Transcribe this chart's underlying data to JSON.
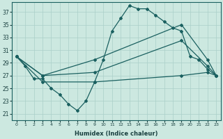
{
  "xlabel": "Humidex (Indice chaleur)",
  "bg_color": "#cce8e0",
  "grid_color": "#aacfc8",
  "line_color": "#1a6060",
  "yticks": [
    21,
    23,
    25,
    27,
    29,
    31,
    33,
    35,
    37
  ],
  "xticks": [
    0,
    1,
    2,
    3,
    4,
    5,
    6,
    7,
    8,
    9,
    10,
    11,
    12,
    13,
    14,
    15,
    16,
    17,
    18,
    19,
    20,
    21,
    22,
    23
  ],
  "line1_x": [
    0,
    1,
    2,
    3,
    4,
    5,
    6,
    7,
    8,
    9,
    10,
    11,
    12,
    13,
    14,
    15,
    16,
    17,
    18,
    19,
    20,
    21,
    22,
    23
  ],
  "line1_y": [
    30.0,
    28.5,
    26.5,
    26.5,
    25.0,
    24.0,
    22.5,
    21.5,
    23.0,
    26.0,
    29.5,
    34.0,
    36.0,
    38.0,
    37.5,
    37.5,
    36.5,
    35.5,
    34.5,
    34.0,
    30.0,
    29.5,
    28.0,
    27.0
  ],
  "line2_x": [
    0,
    3,
    9,
    19,
    22,
    23
  ],
  "line2_y": [
    30.0,
    27.0,
    29.5,
    35.0,
    29.5,
    27.0
  ],
  "line3_x": [
    0,
    3,
    9,
    19,
    22,
    23
  ],
  "line3_y": [
    30.0,
    27.0,
    27.5,
    32.5,
    28.5,
    27.0
  ],
  "line4_x": [
    0,
    3,
    9,
    19,
    22,
    23
  ],
  "line4_y": [
    30.0,
    26.0,
    26.0,
    27.0,
    27.5,
    27.0
  ]
}
